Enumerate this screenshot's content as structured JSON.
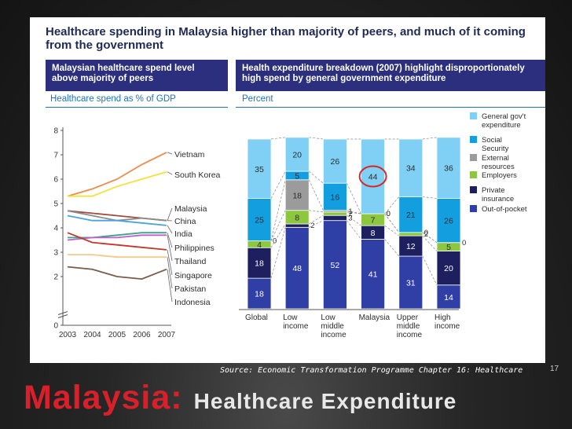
{
  "slide": {
    "title": "Healthcare spending in Malaysia higher than majority of peers, and much of it coming from the government",
    "left_header": "Malaysian healthcare spend level above majority of peers",
    "right_header": "Health expenditure breakdown (2007) highlight disproportionately high spend by general government expenditure",
    "left_subheader": "Healthcare spend as % of GDP",
    "right_subheader": "Percent",
    "source": "Source: Economic Transformation Programme Chapter 16: Healthcare",
    "page_number": "17",
    "footer_country": "Malaysia:",
    "footer_subtitle": "Healthcare Expenditure"
  },
  "chart_data": [
    {
      "type": "line",
      "ylim": [
        0,
        8
      ],
      "yticks": [
        "0",
        "2",
        "3",
        "4",
        "5",
        "6",
        "7",
        "8"
      ],
      "y_axis_break": true,
      "x": [
        "2003",
        "2004",
        "2005",
        "2006",
        "2007"
      ],
      "series": [
        {
          "name": "Vietnam",
          "color": "#f08a4b",
          "values": [
            5.3,
            5.6,
            6.0,
            6.6,
            7.1
          ]
        },
        {
          "name": "South Korea",
          "color": "#f2e23a",
          "values": [
            5.3,
            5.3,
            5.7,
            6.0,
            6.3
          ]
        },
        {
          "name": "Malaysia",
          "color": "#a44a3f",
          "values": [
            4.7,
            4.6,
            4.5,
            4.4,
            4.3
          ]
        },
        {
          "name": "China",
          "color": "#8c8c8c",
          "values": [
            4.7,
            4.5,
            4.3,
            4.4,
            4.3
          ]
        },
        {
          "name": "India",
          "color": "#4aa3df",
          "values": [
            4.5,
            4.3,
            4.3,
            4.2,
            4.1
          ]
        },
        {
          "name": "Philippines",
          "color": "#3aa58c",
          "values": [
            3.6,
            3.6,
            3.7,
            3.8,
            3.8
          ]
        },
        {
          "name": "Thailand",
          "color": "#c060c8",
          "values": [
            3.5,
            3.6,
            3.6,
            3.7,
            3.7
          ]
        },
        {
          "name": "Singapore",
          "color": "#c0392b",
          "values": [
            3.8,
            3.4,
            3.3,
            3.2,
            3.1
          ]
        },
        {
          "name": "Pakistan",
          "color": "#f5c98a",
          "values": [
            2.9,
            2.9,
            2.8,
            2.8,
            2.8
          ]
        },
        {
          "name": "Indonesia",
          "color": "#7a5a48",
          "values": [
            2.4,
            2.3,
            2.0,
            1.9,
            2.3
          ]
        }
      ]
    },
    {
      "type": "bar",
      "stacked": true,
      "categories": [
        "Global",
        "Low income",
        "Low middle income",
        "Malaysia",
        "Upper middle income",
        "High income"
      ],
      "series": [
        {
          "name": "Out-of-pocket",
          "color": "#2f3fa5",
          "values": [
            18,
            48,
            52,
            41,
            31,
            14
          ]
        },
        {
          "name": "Private insurance",
          "color": "#1d1f5e",
          "values": [
            18,
            2,
            3,
            8,
            12,
            20
          ]
        },
        {
          "name": "Employers",
          "color": "#8dc63f",
          "values": [
            4,
            8,
            2,
            7,
            2,
            5
          ]
        },
        {
          "name": "External resources",
          "color": "#9b9b9b",
          "values": [
            0,
            18,
            1,
            0,
            0,
            0
          ]
        },
        {
          "name": "Social Security",
          "color": "#139ee0",
          "values": [
            25,
            5,
            16,
            0,
            21,
            26
          ]
        },
        {
          "name": "General gov't expenditure",
          "color": "#7fd0f4",
          "values": [
            35,
            20,
            26,
            44,
            34,
            36
          ]
        }
      ],
      "highlight": {
        "category": "Malaysia",
        "series": "General gov't expenditure",
        "value": 44
      }
    }
  ]
}
